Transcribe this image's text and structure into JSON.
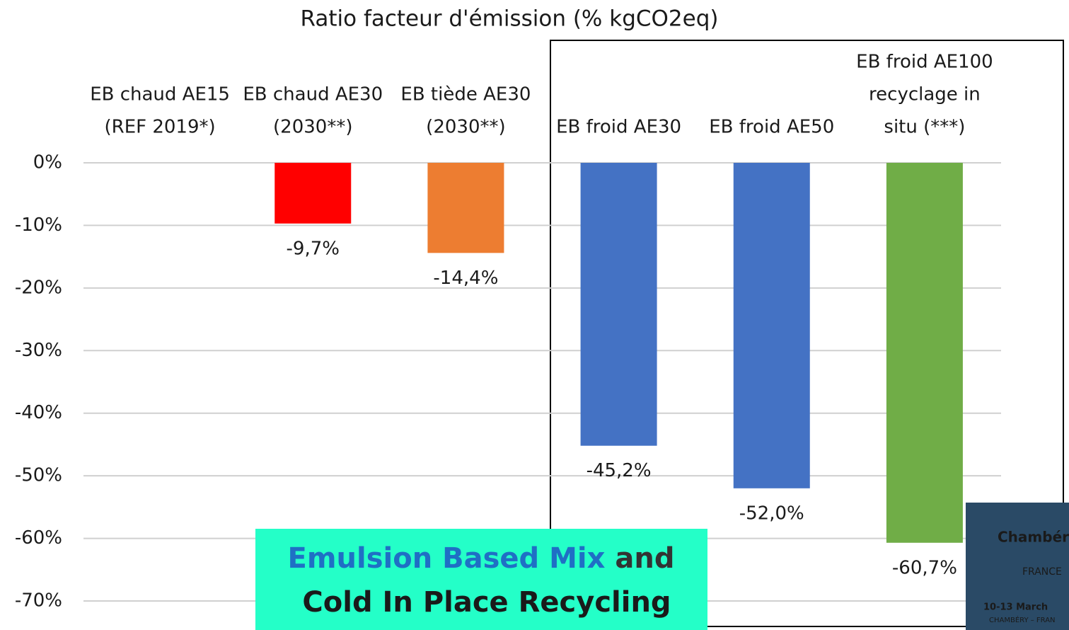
{
  "chart_data": {
    "type": "bar",
    "title": "Ratio facteur d'émission (% kgCO2eq)",
    "categories": [
      [
        "EB chaud AE15",
        "(REF 2019*)"
      ],
      [
        "EB chaud AE30",
        "(2030**)"
      ],
      [
        "EB tiède AE30",
        "(2030**)"
      ],
      [
        "EB froid AE30"
      ],
      [
        "EB froid AE50"
      ],
      [
        "EB froid AE100",
        "recyclage  in",
        "situ (***)"
      ]
    ],
    "values": [
      0,
      -9.7,
      -14.4,
      -45.2,
      -52.0,
      -60.7
    ],
    "value_labels": [
      null,
      "-9,7%",
      "-14,4%",
      "-45,2%",
      "-52,0%",
      "-60,7%"
    ],
    "colors": [
      "#ffffff",
      "#ff0000",
      "#ed7d31",
      "#4472c4",
      "#4472c4",
      "#70ad47"
    ],
    "ylim": [
      -70,
      0
    ],
    "yticks": [
      {
        "value": 0,
        "label": "0%"
      },
      {
        "value": -10,
        "label": "-10%"
      },
      {
        "value": -20,
        "label": "-20%"
      },
      {
        "value": -30,
        "label": "-30%"
      },
      {
        "value": -40,
        "label": "-40%"
      },
      {
        "value": -50,
        "label": "-50%"
      },
      {
        "value": -60,
        "label": "-60%"
      },
      {
        "value": -70,
        "label": "-70%"
      }
    ],
    "grid": true,
    "annotation": {
      "line1": [
        "Emulsion Based Mix",
        " and"
      ],
      "line2": "Cold In Place Recycling"
    },
    "logo": [
      "Chambér",
      "FRANCE",
      "10-13 March",
      "CHAMBÉRY – FRAN"
    ]
  }
}
